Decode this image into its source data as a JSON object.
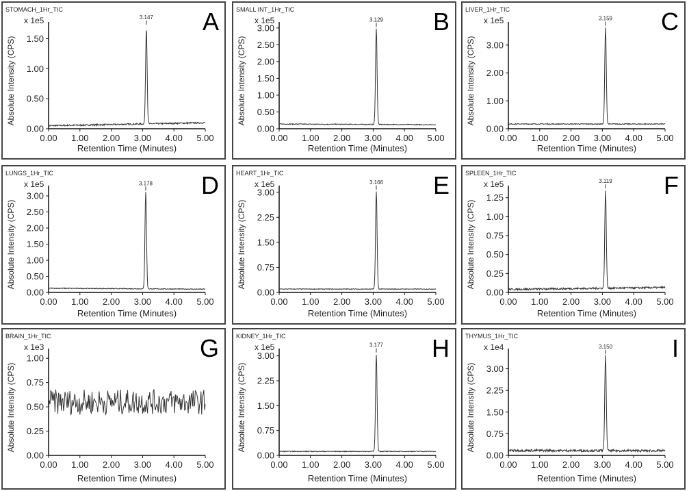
{
  "chart_data": [
    {
      "type": "line",
      "panel_letter": "A",
      "title": "STOMACH_1Hr_TIC",
      "scale_label": "x 1e5",
      "ylabel": "Absolute Intensity (CPS)",
      "xlabel": "Retention Time (Minutes)",
      "xlim": [
        0,
        5
      ],
      "xticks": [
        "0.00",
        "1.00",
        "2.00",
        "3.00",
        "4.00",
        "5.00"
      ],
      "ylim": [
        0,
        1.78
      ],
      "yticks": [
        0,
        0.5,
        1.0,
        1.5
      ],
      "ytick_labels": [
        "0.00",
        "0.50",
        "1.00",
        "1.50"
      ],
      "peak_label": "3.147",
      "peak_rt": 3.12,
      "peak_height": 1.6,
      "baseline_start": 0.05,
      "baseline_end": 0.1,
      "noise": 0.012
    },
    {
      "type": "line",
      "panel_letter": "B",
      "title": "SMALL INT_1Hr_TIC",
      "scale_label": "x 1e5",
      "ylabel": "Absolute Intensity (CPS)",
      "xlabel": "Retention Time (Minutes)",
      "xlim": [
        0,
        5
      ],
      "xticks": [
        "0.00",
        "1.00",
        "2.00",
        "3.00",
        "4.00",
        "5.00"
      ],
      "ylim": [
        0,
        3.18
      ],
      "yticks": [
        0,
        0.5,
        1,
        1.5,
        2,
        2.5,
        3
      ],
      "ytick_labels": [
        "0.00",
        "0.50",
        "1.00",
        "1.50",
        "2.00",
        "2.50",
        "3.00"
      ],
      "peak_label": "3.129",
      "peak_rt": 3.1,
      "peak_height": 2.85,
      "baseline_start": 0.14,
      "baseline_end": 0.12,
      "noise": 0.012
    },
    {
      "type": "line",
      "panel_letter": "C",
      "title": "LIVER_1Hr_TIC",
      "scale_label": "x 1e5",
      "ylabel": "Absolute Intensity (CPS)",
      "xlabel": "Retention Time (Minutes)",
      "xlim": [
        0,
        5
      ],
      "xticks": [
        "0.00",
        "1.00",
        "2.00",
        "3.00",
        "4.00",
        "5.00"
      ],
      "ylim": [
        0,
        3.83
      ],
      "yticks": [
        0,
        1,
        2,
        3
      ],
      "ytick_labels": [
        "0.00",
        "1.00",
        "2.00",
        "3.00"
      ],
      "peak_label": "3.159",
      "peak_rt": 3.1,
      "peak_height": 3.45,
      "baseline_start": 0.17,
      "baseline_end": 0.17,
      "noise": 0.015
    },
    {
      "type": "line",
      "panel_letter": "D",
      "title": "LUNGS_1Hr_TIC",
      "scale_label": "x 1e5",
      "ylabel": "Absolute Intensity (CPS)",
      "xlabel": "Retention Time (Minutes)",
      "xlim": [
        0,
        5
      ],
      "xticks": [
        "0.00",
        "1.00",
        "2.00",
        "3.00",
        "4.00",
        "5.00"
      ],
      "ylim": [
        0,
        3.32
      ],
      "yticks": [
        0,
        0.5,
        1,
        1.5,
        2,
        2.5,
        3
      ],
      "ytick_labels": [
        "0.00",
        "0.50",
        "1.00",
        "1.50",
        "2.00",
        "2.50",
        "3.00"
      ],
      "peak_label": "3.178",
      "peak_rt": 3.1,
      "peak_height": 3.0,
      "baseline_start": 0.13,
      "baseline_end": 0.1,
      "noise": 0.012
    },
    {
      "type": "line",
      "panel_letter": "E",
      "title": "HEART_1Hr_TIC",
      "scale_label": "x 1e5",
      "ylabel": "Absolute Intensity (CPS)",
      "xlabel": "Retention Time (Minutes)",
      "xlim": [
        0,
        5
      ],
      "xticks": [
        "0.00",
        "1.00",
        "2.00",
        "3.00",
        "4.00",
        "5.00"
      ],
      "ylim": [
        0,
        3.2
      ],
      "yticks": [
        0,
        0.75,
        1.5,
        2.25,
        3
      ],
      "ytick_labels": [
        "0.00",
        "0.75",
        "1.50",
        "2.25",
        "3.00"
      ],
      "peak_label": "3.166",
      "peak_rt": 3.1,
      "peak_height": 2.92,
      "baseline_start": 0.1,
      "baseline_end": 0.1,
      "noise": 0.01
    },
    {
      "type": "line",
      "panel_letter": "F",
      "title": "SPLEEN_1Hr_TIC",
      "scale_label": "x 1e5",
      "ylabel": "Absolute Intensity (CPS)",
      "xlabel": "Retention Time (Minutes)",
      "xlim": [
        0,
        5
      ],
      "xticks": [
        "0.00",
        "1.00",
        "2.00",
        "3.00",
        "4.00",
        "5.00"
      ],
      "ylim": [
        0,
        1.41
      ],
      "yticks": [
        0,
        0.25,
        0.5,
        0.75,
        1,
        1.25
      ],
      "ytick_labels": [
        "0.00",
        "0.25",
        "0.50",
        "0.75",
        "1.00",
        "1.25"
      ],
      "peak_label": "3.119",
      "peak_rt": 3.1,
      "peak_height": 1.28,
      "baseline_start": 0.04,
      "baseline_end": 0.065,
      "noise": 0.012
    },
    {
      "type": "line",
      "panel_letter": "G",
      "title": "BRAIN_1Hr_TIC",
      "scale_label": "x 1e3",
      "ylabel": "Absolute Intensity (CPS)",
      "xlabel": "Retention Time (Minutes)",
      "xlim": [
        0,
        5
      ],
      "xticks": [
        "0.00",
        "1.00",
        "2.00",
        "3.00",
        "4.00",
        "5.00"
      ],
      "ylim": [
        0,
        1.1
      ],
      "yticks": [
        0,
        0.25,
        0.5,
        0.75,
        1
      ],
      "ytick_labels": [
        "0.00",
        "0.25",
        "0.50",
        "0.75",
        "1.00"
      ],
      "peak_label": "",
      "peak_rt": null,
      "peak_height": 0,
      "baseline_start": 0.55,
      "baseline_end": 0.55,
      "noise": 0.13
    },
    {
      "type": "line",
      "panel_letter": "H",
      "title": "KIDNEY_1Hr_TIC",
      "scale_label": "x 1e5",
      "ylabel": "Absolute Intensity (CPS)",
      "xlabel": "Retention Time (Minutes)",
      "xlim": [
        0,
        5
      ],
      "xticks": [
        "0.00",
        "1.00",
        "2.00",
        "3.00",
        "4.00",
        "5.00"
      ],
      "ylim": [
        0,
        3.22
      ],
      "yticks": [
        0,
        0.75,
        1.5,
        2.25,
        3
      ],
      "ytick_labels": [
        "0.00",
        "0.75",
        "1.50",
        "2.25",
        "3.00"
      ],
      "peak_label": "3.177",
      "peak_rt": 3.1,
      "peak_height": 2.92,
      "baseline_start": 0.12,
      "baseline_end": 0.12,
      "noise": 0.012
    },
    {
      "type": "line",
      "panel_letter": "I",
      "title": "THYMUS_1Hr_TIC",
      "scale_label": "x 1e4",
      "ylabel": "Absolute Intensity (CPS)",
      "xlabel": "Retention Time (Minutes)",
      "xlim": [
        0,
        5
      ],
      "xticks": [
        "0.00",
        "1.00",
        "2.00",
        "3.00",
        "4.00",
        "5.00"
      ],
      "ylim": [
        0,
        3.7
      ],
      "yticks": [
        0,
        0.75,
        1.5,
        2.25,
        3
      ],
      "ytick_labels": [
        "0.00",
        "0.75",
        "1.50",
        "2.25",
        "3.00"
      ],
      "peak_label": "3.150",
      "peak_rt": 3.1,
      "peak_height": 3.28,
      "baseline_start": 0.17,
      "baseline_end": 0.16,
      "noise": 0.04
    }
  ]
}
